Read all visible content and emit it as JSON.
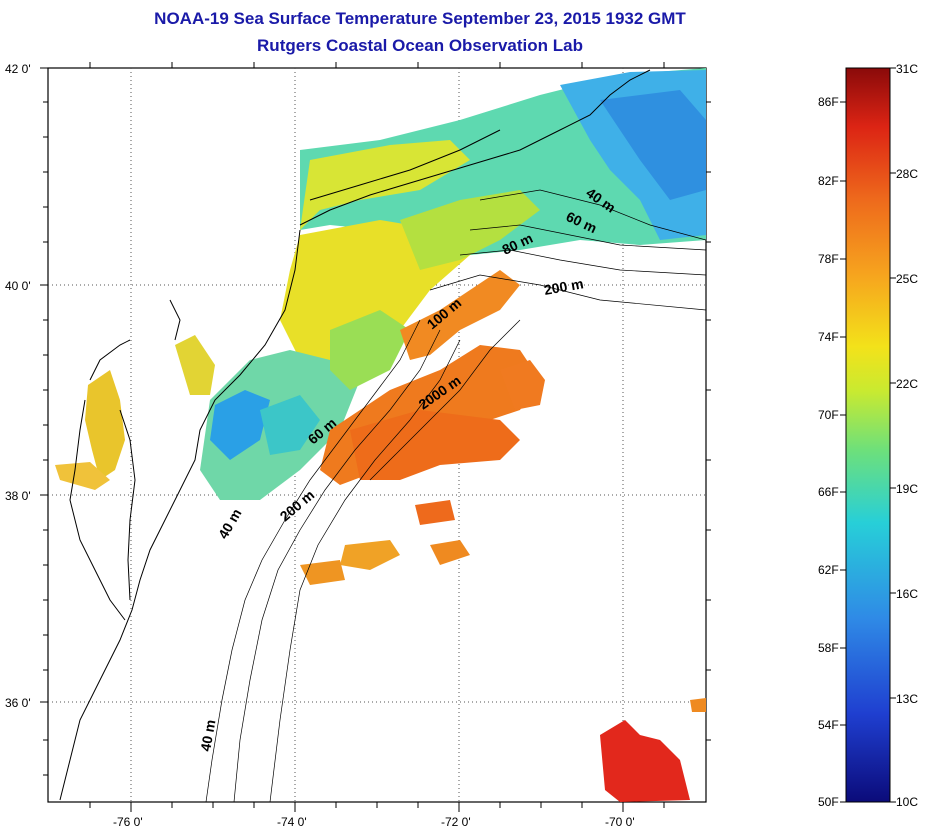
{
  "title": {
    "line1": "NOAA-19 Sea Surface Temperature September 23, 2015 1932 GMT",
    "line2": "Rutgers Coastal Ocean Observation Lab"
  },
  "map": {
    "lat_labels": [
      "42 0'",
      "40 0'",
      "38 0'",
      "36 0'"
    ],
    "lon_labels": [
      "-76 0'",
      "-74 0'",
      "-72 0'",
      "-70 0'"
    ],
    "contour_labels": [
      "40 m",
      "60 m",
      "80 m",
      "200 m",
      "100 m",
      "2000 m",
      "60 m",
      "200 m",
      "40 m",
      "40 m"
    ]
  },
  "colorbar": {
    "fahrenheit_labels": [
      "86F",
      "82F",
      "78F",
      "74F",
      "70F",
      "66F",
      "62F",
      "58F",
      "54F",
      "50F"
    ],
    "celsius_labels": [
      "31C",
      "28C",
      "25C",
      "22C",
      "19C",
      "16C",
      "13C",
      "10C"
    ],
    "colors": [
      "#0b0b7a",
      "#1f3fd0",
      "#2f8ae6",
      "#27cfd8",
      "#6ee07a",
      "#c9ea30",
      "#f3e21a",
      "#f6a31e",
      "#ee6a1c",
      "#dc2414",
      "#8a0a0a"
    ]
  }
}
